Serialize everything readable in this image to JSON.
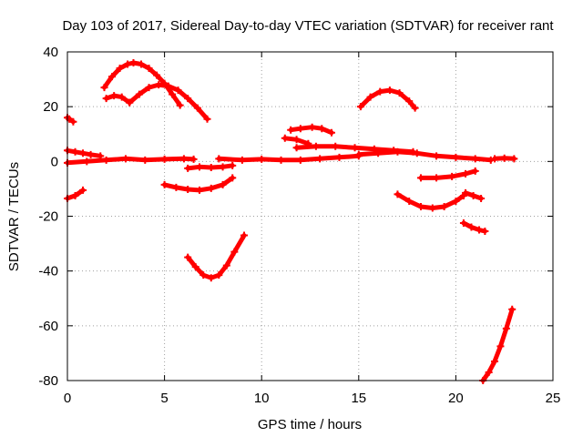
{
  "chart_data": {
    "type": "scatter",
    "title": "Day 103 of 2017, Sidereal Day-to-day VTEC variation (SDTVAR) for receiver rant",
    "xlabel": "GPS time / hours",
    "ylabel": "SDTVAR / TECUs",
    "xlim": [
      0,
      25
    ],
    "ylim": [
      -80,
      40
    ],
    "xticks": [
      0,
      5,
      10,
      15,
      20,
      25
    ],
    "yticks": [
      -80,
      -60,
      -40,
      -20,
      0,
      20,
      40
    ],
    "grid": true,
    "marker_color": "#ff0000",
    "series": [
      {
        "x": [
          0.0,
          0.1,
          0.3
        ],
        "y": [
          16.0,
          15.5,
          14.5
        ]
      },
      {
        "x": [
          1.9,
          2.3,
          2.7,
          3.1,
          3.4,
          3.8,
          4.2,
          4.6,
          5.0,
          5.4,
          5.8
        ],
        "y": [
          27.0,
          31.0,
          34.0,
          35.5,
          36.0,
          35.5,
          34.0,
          31.5,
          28.5,
          24.5,
          20.5
        ]
      },
      {
        "x": [
          2.0,
          2.4,
          2.8,
          3.2
        ],
        "y": [
          23.0,
          24.0,
          23.5,
          21.5
        ]
      },
      {
        "x": [
          3.2,
          3.7,
          4.2,
          4.7,
          5.2,
          5.7,
          6.2,
          6.7,
          7.2
        ],
        "y": [
          21.5,
          24.5,
          27.0,
          28.0,
          27.5,
          26.0,
          23.0,
          19.5,
          15.5
        ]
      },
      {
        "x": [
          0.0,
          0.4,
          0.8,
          1.2,
          1.7
        ],
        "y": [
          4.0,
          3.5,
          3.0,
          2.5,
          2.0
        ]
      },
      {
        "x": [
          0.0,
          1.0,
          2.0,
          3.0,
          4.0,
          5.0,
          6.0,
          6.5
        ],
        "y": [
          -0.5,
          0.0,
          0.5,
          1.0,
          0.5,
          0.8,
          1.0,
          0.8
        ]
      },
      {
        "x": [
          6.2,
          6.8,
          7.4,
          8.0,
          8.5
        ],
        "y": [
          -2.5,
          -2.0,
          -2.2,
          -2.0,
          -1.5
        ]
      },
      {
        "x": [
          7.8,
          9.0,
          10.0,
          11.0,
          12.0,
          13.0,
          14.0,
          15.0
        ],
        "y": [
          1.0,
          0.5,
          0.8,
          0.5,
          0.5,
          1.0,
          1.5,
          2.0
        ]
      },
      {
        "x": [
          15.0,
          16.0,
          17.0,
          18.0,
          19.0,
          20.0,
          21.0,
          21.8
        ],
        "y": [
          2.5,
          3.0,
          3.5,
          3.0,
          2.0,
          1.5,
          1.0,
          0.5
        ]
      },
      {
        "x": [
          22.0,
          22.5,
          23.0
        ],
        "y": [
          1.0,
          1.2,
          1.0
        ]
      },
      {
        "x": [
          0.0,
          0.4,
          0.8
        ],
        "y": [
          -13.5,
          -12.5,
          -10.5
        ]
      },
      {
        "x": [
          5.0,
          5.6,
          6.2,
          6.8,
          7.4,
          8.0,
          8.5
        ],
        "y": [
          -8.5,
          -9.5,
          -10.2,
          -10.5,
          -9.8,
          -8.5,
          -6.0
        ]
      },
      {
        "x": [
          6.2,
          6.6,
          7.0,
          7.4,
          7.8,
          8.2,
          8.6,
          9.1
        ],
        "y": [
          -35.0,
          -38.5,
          -41.5,
          -42.5,
          -41.5,
          -38.0,
          -33.0,
          -27.0
        ]
      },
      {
        "x": [
          11.2,
          11.8,
          12.4
        ],
        "y": [
          8.5,
          8.0,
          6.5
        ]
      },
      {
        "x": [
          11.5,
          12.0,
          12.6,
          13.1,
          13.6
        ],
        "y": [
          11.5,
          12.0,
          12.5,
          12.0,
          10.5
        ]
      },
      {
        "x": [
          11.8,
          12.8,
          13.8,
          14.8,
          15.8,
          16.8,
          17.8
        ],
        "y": [
          5.0,
          5.5,
          5.5,
          5.0,
          4.5,
          4.0,
          3.5
        ]
      },
      {
        "x": [
          15.1,
          15.6,
          16.1,
          16.6,
          17.1,
          17.6,
          17.9
        ],
        "y": [
          20.0,
          23.5,
          25.5,
          26.0,
          25.0,
          22.0,
          19.5
        ]
      },
      {
        "x": [
          18.2,
          19.0,
          19.8,
          20.5,
          21.0
        ],
        "y": [
          -6.0,
          -6.0,
          -5.5,
          -4.5,
          -3.5
        ]
      },
      {
        "x": [
          17.0,
          17.6,
          18.2,
          18.8,
          19.4,
          20.0,
          20.4
        ],
        "y": [
          -12.0,
          -14.5,
          -16.5,
          -17.0,
          -16.5,
          -14.5,
          -12.5
        ]
      },
      {
        "x": [
          20.5,
          20.9,
          21.3
        ],
        "y": [
          -11.5,
          -12.5,
          -13.5
        ]
      },
      {
        "x": [
          20.4,
          20.8,
          21.2,
          21.5
        ],
        "y": [
          -22.5,
          -24.0,
          -25.0,
          -25.5
        ]
      },
      {
        "x": [
          21.4,
          21.7,
          22.0,
          22.3,
          22.6,
          22.9
        ],
        "y": [
          -80.0,
          -77.0,
          -73.0,
          -67.5,
          -61.0,
          -54.0
        ]
      }
    ]
  }
}
